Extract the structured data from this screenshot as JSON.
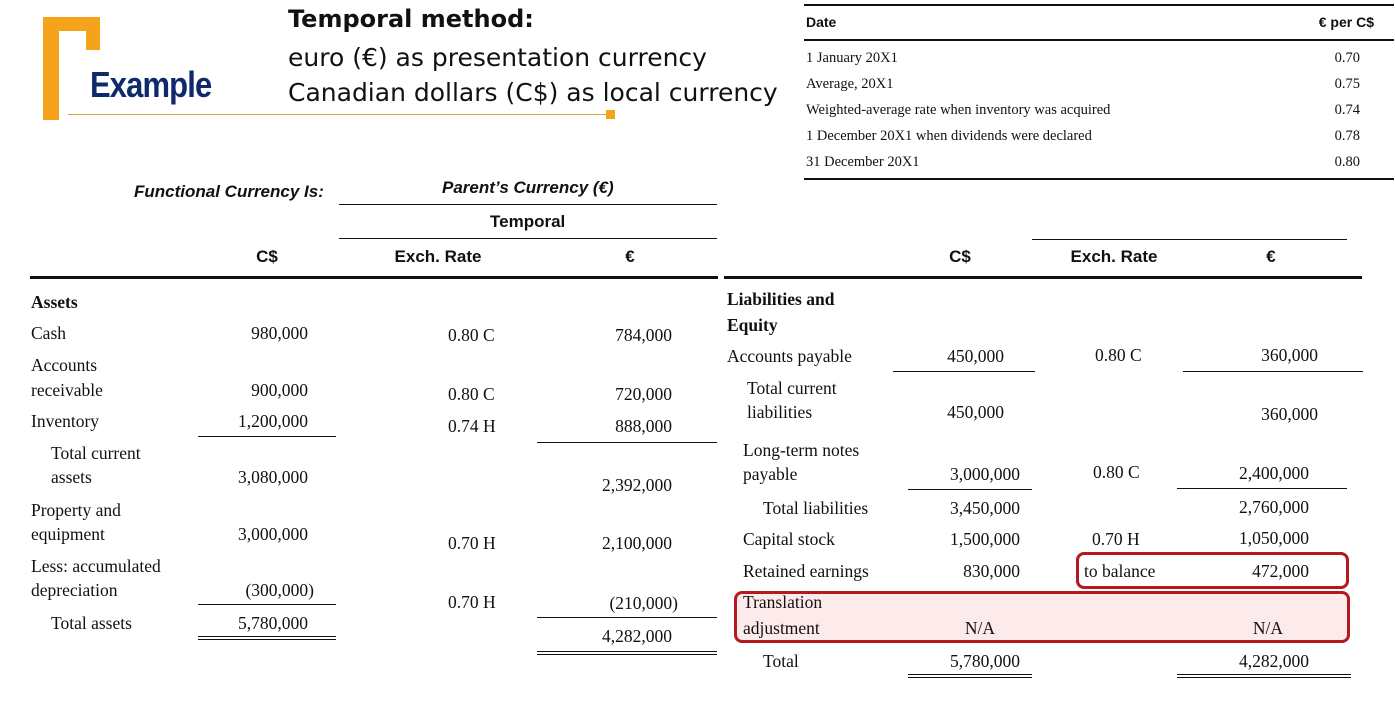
{
  "logo": {
    "label": "Example"
  },
  "heading": {
    "title": "Temporal method:",
    "line1": "euro (€) as presentation currency",
    "line2": "Canadian dollars (C$) as local currency"
  },
  "rates_table": {
    "col_date": "Date",
    "col_rate": "€ per C$",
    "rows": [
      {
        "date": "1 January 20X1",
        "rate": "0.70"
      },
      {
        "date": "Average, 20X1",
        "rate": "0.75"
      },
      {
        "date": "Weighted-average rate when inventory was acquired",
        "rate": "0.74"
      },
      {
        "date": "1 December 20X1 when dividends were declared",
        "rate": "0.78"
      },
      {
        "date": "31 December 20X1",
        "rate": "0.80"
      }
    ]
  },
  "headers": {
    "functional_currency": "Functional Currency Is:",
    "parents_currency": "Parent’s Currency (€)",
    "temporal": "Temporal",
    "cs": "C$",
    "exch_rate": "Exch. Rate",
    "euro": "€"
  },
  "assets": {
    "section": "Assets",
    "cash": {
      "label": "Cash",
      "cs": "980,000",
      "rate": "0.80 C",
      "eur": "784,000"
    },
    "ar": {
      "label1": "Accounts",
      "label2": "receivable",
      "cs": "900,000",
      "rate": "0.80 C",
      "eur": "720,000"
    },
    "inventory": {
      "label": "Inventory",
      "cs": "1,200,000",
      "rate": "0.74 H",
      "eur": "888,000"
    },
    "tca": {
      "label1": "Total current",
      "label2": "assets",
      "cs": "3,080,000",
      "eur": "2,392,000"
    },
    "ppe": {
      "label1": "Property and",
      "label2": "equipment",
      "cs": "3,000,000",
      "rate": "0.70 H",
      "eur": "2,100,000"
    },
    "dep": {
      "label1": "Less: accumulated",
      "label2": "depreciation",
      "cs": "(300,000)",
      "rate": "0.70 H",
      "eur": "(210,000)"
    },
    "total": {
      "label": "Total assets",
      "cs": "5,780,000",
      "eur": "4,282,000"
    }
  },
  "liabilities": {
    "section1": "Liabilities and",
    "section2": "Equity",
    "ap": {
      "label": "Accounts payable",
      "cs": "450,000",
      "rate": "0.80 C",
      "eur": "360,000"
    },
    "tcl": {
      "label1": "Total current",
      "label2": "liabilities",
      "cs": "450,000",
      "eur": "360,000"
    },
    "ltn": {
      "label1": "Long-term notes",
      "label2": "payable",
      "cs": "3,000,000",
      "rate": "0.80 C",
      "eur": "2,400,000"
    },
    "tl": {
      "label": "Total liabilities",
      "cs": "3,450,000",
      "eur": "2,760,000"
    },
    "cap": {
      "label": "Capital stock",
      "cs": "1,500,000",
      "rate": "0.70 H",
      "eur": "1,050,000"
    },
    "re": {
      "label": "Retained earnings",
      "cs": "830,000",
      "rate": "to balance",
      "eur": "472,000"
    },
    "ta": {
      "label1": "Translation",
      "label2": "adjustment",
      "cs": "N/A",
      "eur": "N/A"
    },
    "total": {
      "label": "Total",
      "cs": "5,780,000",
      "eur": "4,282,000"
    }
  }
}
